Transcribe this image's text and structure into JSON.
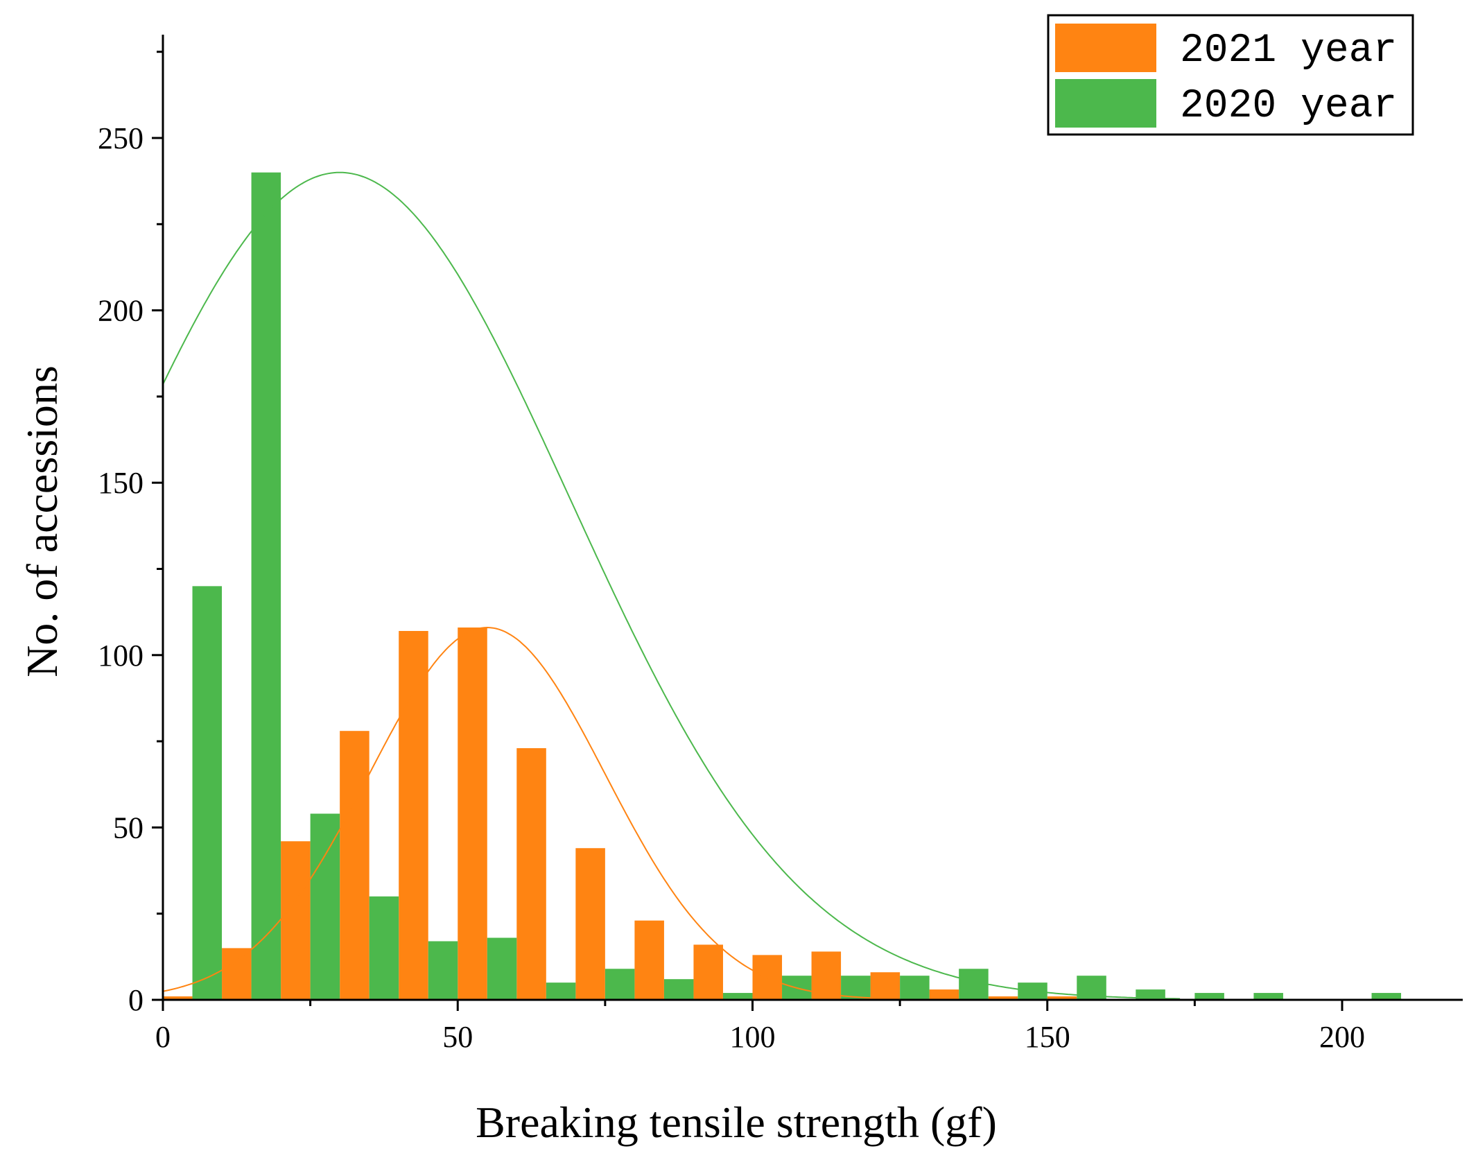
{
  "chart_data": {
    "type": "bar",
    "title": "",
    "xlabel": "Breaking tensile strength (gf)",
    "ylabel": "No. of accessions",
    "xlim": [
      0,
      220
    ],
    "ylim": [
      0,
      280
    ],
    "xticks": [
      0,
      50,
      100,
      150,
      200
    ],
    "yticks": [
      0,
      50,
      100,
      150,
      200,
      250
    ],
    "bin_width": 5,
    "legend_position": "top-right",
    "series": [
      {
        "name": "2021 year",
        "color": "#ff8412",
        "bars": [
          {
            "x0": 0,
            "value": 1
          },
          {
            "x0": 10,
            "value": 15
          },
          {
            "x0": 20,
            "value": 46
          },
          {
            "x0": 30,
            "value": 78
          },
          {
            "x0": 40,
            "value": 107
          },
          {
            "x0": 50,
            "value": 108
          },
          {
            "x0": 60,
            "value": 73
          },
          {
            "x0": 70,
            "value": 44
          },
          {
            "x0": 80,
            "value": 23
          },
          {
            "x0": 90,
            "value": 16
          },
          {
            "x0": 100,
            "value": 13
          },
          {
            "x0": 110,
            "value": 14
          },
          {
            "x0": 120,
            "value": 8
          },
          {
            "x0": 130,
            "value": 3
          },
          {
            "x0": 140,
            "value": 1
          },
          {
            "x0": 150,
            "value": 1
          }
        ],
        "fit_curve": {
          "type": "normal",
          "peak": 108,
          "mean": 55,
          "sd": 20
        }
      },
      {
        "name": "2020 year",
        "color": "#4cb84c",
        "bars": [
          {
            "x0": 5,
            "value": 120
          },
          {
            "x0": 15,
            "value": 240
          },
          {
            "x0": 25,
            "value": 54
          },
          {
            "x0": 35,
            "value": 30
          },
          {
            "x0": 45,
            "value": 17
          },
          {
            "x0": 55,
            "value": 18
          },
          {
            "x0": 65,
            "value": 5
          },
          {
            "x0": 75,
            "value": 9
          },
          {
            "x0": 85,
            "value": 6
          },
          {
            "x0": 95,
            "value": 2
          },
          {
            "x0": 105,
            "value": 7
          },
          {
            "x0": 115,
            "value": 7
          },
          {
            "x0": 125,
            "value": 7
          },
          {
            "x0": 135,
            "value": 9
          },
          {
            "x0": 145,
            "value": 5
          },
          {
            "x0": 155,
            "value": 7
          },
          {
            "x0": 165,
            "value": 3
          },
          {
            "x0": 175,
            "value": 2
          },
          {
            "x0": 185,
            "value": 2
          },
          {
            "x0": 205,
            "value": 2
          }
        ],
        "fit_curve": {
          "type": "normal",
          "peak": 240,
          "mean": 30,
          "sd": 39
        }
      }
    ]
  }
}
